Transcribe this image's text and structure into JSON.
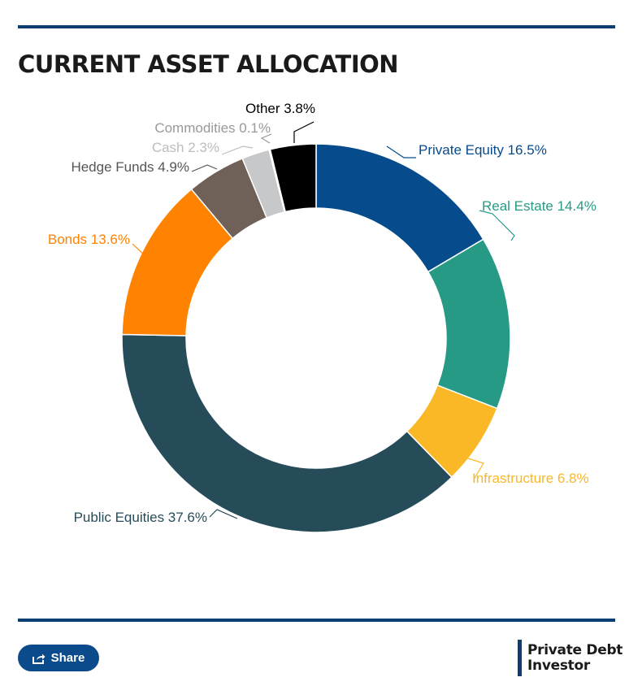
{
  "header": {
    "title": "CURRENT ASSET ALLOCATION"
  },
  "colors": {
    "rule": "#0b3f72",
    "share_bg": "#0b4a8b",
    "brand_bar": "#0b3f72"
  },
  "chart_data": {
    "type": "pie",
    "style": "donut",
    "title": "CURRENT ASSET ALLOCATION",
    "slices": [
      {
        "label": "Private Equity 16.5%",
        "value": 16.5,
        "color": "#064b8b"
      },
      {
        "label": "Real Estate 14.4%",
        "value": 14.4,
        "color": "#279a86"
      },
      {
        "label": "Infrastructure 6.8%",
        "value": 6.8,
        "color": "#fbb826"
      },
      {
        "label": "Public Equities 37.6%",
        "value": 37.6,
        "color": "#264c5a"
      },
      {
        "label": "Bonds 13.6%",
        "value": 13.6,
        "color": "#ff8200"
      },
      {
        "label": "Hedge Funds 4.9%",
        "value": 4.9,
        "color": "#6f6158"
      },
      {
        "label": "Cash 2.3%",
        "value": 2.3,
        "color": "#c6c8ca"
      },
      {
        "label": "Commodities 0.1%",
        "value": 0.1,
        "color": "#9a9a9a"
      },
      {
        "label": "Other 3.8%",
        "value": 3.8,
        "color": "#000000"
      }
    ],
    "label_colors": [
      "#064b8b",
      "#279a86",
      "#fbb826",
      "#264c5a",
      "#ff8200",
      "#555555",
      "#bdbdbd",
      "#999999",
      "#000000"
    ]
  },
  "footer": {
    "share_label": "Share",
    "share_icon": "share-icon",
    "brand_line1": "Private Debt",
    "brand_line2": "Investor"
  }
}
